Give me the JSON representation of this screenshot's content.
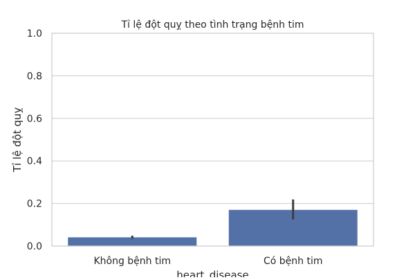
{
  "chart_data": {
    "type": "bar",
    "title": "Tỉ lệ đột quỵ theo tình trạng bệnh tim",
    "xlabel": "heart_disease",
    "ylabel": "Tỉ lệ đột quỵ",
    "categories": [
      "Không bệnh tim",
      "Có bệnh tim"
    ],
    "values": [
      0.041,
      0.17
    ],
    "error_bars": [
      {
        "low": 0.034,
        "high": 0.049
      },
      {
        "low": 0.125,
        "high": 0.219
      }
    ],
    "ylim": [
      0,
      1.0
    ],
    "yticks": [
      "0.0",
      "0.2",
      "0.4",
      "0.6",
      "0.8",
      "1.0"
    ],
    "grid": true,
    "bar_color": "#5471a7",
    "errorbar_color": "#3d3d3d",
    "grid_color": "#cccccc",
    "spine_color": "#cccccc"
  }
}
